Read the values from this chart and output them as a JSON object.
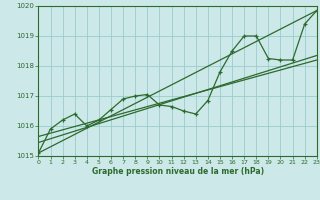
{
  "title": "Graphe pression niveau de la mer (hPa)",
  "xlim": [
    0,
    23
  ],
  "ylim": [
    1015,
    1020
  ],
  "yticks": [
    1015,
    1016,
    1017,
    1018,
    1019,
    1020
  ],
  "xticks": [
    0,
    1,
    2,
    3,
    4,
    5,
    6,
    7,
    8,
    9,
    10,
    11,
    12,
    13,
    14,
    15,
    16,
    17,
    18,
    19,
    20,
    21,
    22,
    23
  ],
  "line_color": "#2d6a2d",
  "bg_color": "#cce8e8",
  "grid_color": "#99cccc",
  "series1_x": [
    0,
    1,
    2,
    3,
    4,
    5,
    6,
    7,
    8,
    9,
    10,
    11,
    12,
    13,
    14,
    15,
    16,
    17,
    18,
    19,
    20,
    21,
    22,
    23
  ],
  "series1_y": [
    1015.1,
    1015.9,
    1016.2,
    1016.4,
    1016.0,
    1016.2,
    1016.55,
    1016.9,
    1017.0,
    1017.05,
    1016.7,
    1016.65,
    1016.5,
    1016.4,
    1016.85,
    1017.8,
    1018.5,
    1019.0,
    1019.0,
    1018.25,
    1018.2,
    1018.2,
    1019.4,
    1019.85
  ],
  "trend1_x": [
    0,
    23
  ],
  "trend1_y": [
    1015.65,
    1018.2
  ],
  "trend2_x": [
    0,
    23
  ],
  "trend2_y": [
    1015.45,
    1018.35
  ],
  "trend3_x": [
    0,
    23
  ],
  "trend3_y": [
    1015.1,
    1019.85
  ]
}
